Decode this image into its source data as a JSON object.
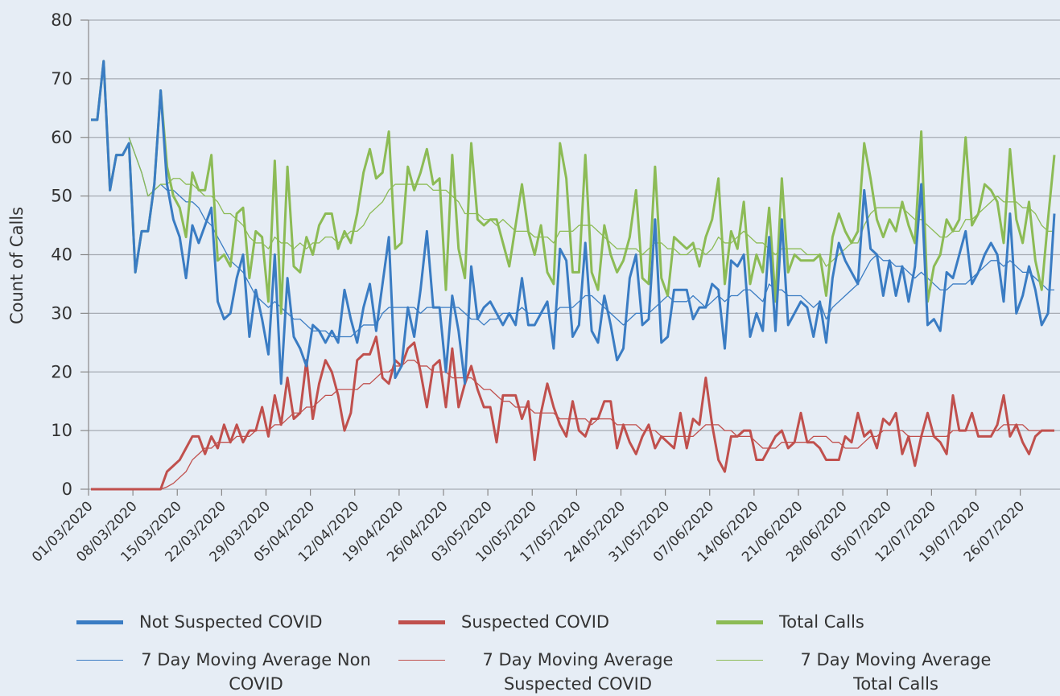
{
  "chart_data": {
    "type": "line",
    "ylabel": "Count of Calls",
    "ylim": [
      0,
      80
    ],
    "yticks": [
      0,
      10,
      20,
      30,
      40,
      50,
      60,
      70,
      80
    ],
    "grid": true,
    "categories": [
      "01/03/2020",
      null,
      null,
      null,
      null,
      null,
      null,
      "08/03/2020",
      null,
      null,
      null,
      null,
      null,
      null,
      "15/03/2020",
      null,
      null,
      null,
      null,
      null,
      null,
      "22/03/2020",
      null,
      null,
      null,
      null,
      null,
      null,
      "29/03/2020",
      null,
      null,
      null,
      null,
      null,
      null,
      "05/04/2020",
      null,
      null,
      null,
      null,
      null,
      null,
      "12/04/2020",
      null,
      null,
      null,
      null,
      null,
      null,
      "19/04/2020",
      null,
      null,
      null,
      null,
      null,
      null,
      "26/04/2020",
      null,
      null,
      null,
      null,
      null,
      null,
      "03/05/2020",
      null,
      null,
      null,
      null,
      null,
      null,
      "10/05/2020",
      null,
      null,
      null,
      null,
      null,
      null,
      "17/05/2020",
      null,
      null,
      null,
      null,
      null,
      null,
      "24/05/2020",
      null,
      null,
      null,
      null,
      null,
      null,
      "31/05/2020",
      null,
      null,
      null,
      null,
      null,
      null,
      "07/06/2020",
      null,
      null,
      null,
      null,
      null,
      null,
      "14/06/2020",
      null,
      null,
      null,
      null,
      null,
      null,
      "21/06/2020",
      null,
      null,
      null,
      null,
      null,
      null,
      "28/06/2020",
      null,
      null,
      null,
      null,
      null,
      null,
      "05/07/2020",
      null,
      null,
      null,
      null,
      null,
      null,
      "12/07/2020",
      null,
      null,
      null,
      null,
      null,
      null,
      "19/07/2020",
      null,
      null,
      null,
      null,
      null,
      null,
      "26/07/2020",
      null,
      null,
      null,
      null,
      null
    ],
    "series": [
      {
        "name": "Not Suspected COVID",
        "color": "#3a7cc3",
        "values": [
          63,
          63,
          73,
          51,
          57,
          57,
          59,
          37,
          44,
          44,
          52,
          68,
          52,
          46,
          43,
          36,
          45,
          42,
          45,
          48,
          32,
          29,
          30,
          36,
          40,
          26,
          34,
          29,
          23,
          40,
          18,
          36,
          26,
          24,
          21,
          28,
          27,
          25,
          27,
          25,
          34,
          29,
          25,
          31,
          35,
          27,
          35,
          43,
          19,
          21,
          31,
          26,
          34,
          44,
          31,
          31,
          20,
          33,
          27,
          18,
          38,
          29,
          31,
          32,
          30,
          28,
          30,
          28,
          36,
          28,
          28,
          30,
          32,
          24,
          41,
          39,
          26,
          28,
          42,
          27,
          25,
          33,
          28,
          22,
          24,
          36,
          40,
          28,
          29,
          46,
          25,
          26,
          34,
          34,
          34,
          29,
          31,
          31,
          35,
          34,
          24,
          39,
          38,
          40,
          26,
          30,
          27,
          43,
          27,
          46,
          28,
          30,
          32,
          31,
          26,
          32,
          25,
          36,
          42,
          39,
          37,
          35,
          51,
          41,
          40,
          33,
          39,
          33,
          38,
          32,
          38,
          52,
          28,
          29,
          27,
          37,
          36,
          40,
          44,
          35,
          37,
          40,
          42,
          40,
          32,
          47,
          30,
          33,
          38,
          34,
          28,
          30,
          47
        ]
      },
      {
        "name": "Suspected COVID",
        "color": "#c0504d",
        "values": [
          0,
          0,
          0,
          0,
          0,
          0,
          0,
          0,
          0,
          0,
          0,
          0,
          3,
          4,
          5,
          7,
          9,
          9,
          6,
          9,
          7,
          11,
          8,
          11,
          8,
          10,
          10,
          14,
          9,
          16,
          11,
          19,
          12,
          13,
          22,
          12,
          18,
          22,
          20,
          16,
          10,
          13,
          22,
          23,
          23,
          26,
          19,
          18,
          22,
          21,
          24,
          25,
          20,
          14,
          21,
          22,
          14,
          24,
          14,
          18,
          21,
          17,
          14,
          14,
          8,
          16,
          16,
          16,
          12,
          15,
          5,
          13,
          18,
          14,
          11,
          9,
          15,
          10,
          9,
          12,
          12,
          15,
          15,
          7,
          11,
          8,
          6,
          9,
          11,
          7,
          9,
          8,
          7,
          13,
          7,
          12,
          11,
          19,
          11,
          5,
          3,
          9,
          9,
          10,
          10,
          5,
          5,
          7,
          9,
          10,
          7,
          8,
          13,
          8,
          8,
          7,
          5,
          5,
          5,
          9,
          8,
          13,
          9,
          10,
          7,
          12,
          11,
          13,
          6,
          9,
          4,
          9,
          13,
          9,
          8,
          6,
          16,
          10,
          10,
          13,
          9,
          9,
          9,
          11,
          16,
          9,
          11,
          8,
          6,
          9,
          10,
          10,
          10
        ]
      },
      {
        "name": "Total Calls",
        "color": "#8cbb55",
        "values": [
          63,
          63,
          73,
          51,
          57,
          57,
          59,
          37,
          44,
          44,
          52,
          68,
          55,
          50,
          48,
          43,
          54,
          51,
          51,
          57,
          39,
          40,
          38,
          47,
          48,
          36,
          44,
          43,
          32,
          56,
          30,
          55,
          38,
          37,
          43,
          40,
          45,
          47,
          47,
          41,
          44,
          42,
          47,
          54,
          58,
          53,
          54,
          61,
          41,
          42,
          55,
          51,
          54,
          58,
          52,
          53,
          34,
          57,
          41,
          36,
          59,
          46,
          45,
          46,
          46,
          42,
          38,
          45,
          52,
          44,
          40,
          45,
          37,
          35,
          59,
          53,
          37,
          37,
          57,
          37,
          34,
          45,
          40,
          37,
          39,
          43,
          51,
          36,
          35,
          55,
          36,
          33,
          43,
          42,
          41,
          42,
          38,
          43,
          46,
          53,
          35,
          44,
          41,
          49,
          35,
          40,
          37,
          48,
          32,
          53,
          37,
          40,
          39,
          39,
          39,
          40,
          33,
          43,
          47,
          44,
          42,
          44,
          59,
          53,
          46,
          43,
          46,
          44,
          49,
          45,
          42,
          61,
          32,
          38,
          40,
          46,
          44,
          46,
          60,
          45,
          47,
          52,
          51,
          49,
          42,
          58,
          46,
          42,
          49,
          39,
          34,
          46,
          57
        ]
      },
      {
        "name": "7 Day Moving Average Non COVID",
        "color": "#3a7cc3",
        "values": [
          null,
          null,
          null,
          null,
          null,
          null,
          60,
          57,
          54,
          50,
          51,
          52,
          51,
          51,
          50,
          49,
          49,
          48,
          46,
          45,
          43,
          41,
          39,
          38,
          37,
          35,
          33,
          32,
          31,
          32,
          31,
          30,
          29,
          29,
          28,
          27,
          27,
          27,
          26,
          26,
          26,
          26,
          27,
          28,
          28,
          28,
          30,
          31,
          31,
          31,
          31,
          31,
          30,
          31,
          31,
          31,
          31,
          31,
          31,
          30,
          29,
          29,
          28,
          29,
          29,
          30,
          30,
          30,
          31,
          30,
          30,
          30,
          30,
          30,
          31,
          31,
          31,
          32,
          33,
          33,
          32,
          31,
          30,
          29,
          28,
          29,
          30,
          30,
          30,
          31,
          32,
          33,
          32,
          32,
          32,
          33,
          32,
          31,
          32,
          33,
          32,
          33,
          33,
          34,
          34,
          33,
          32,
          35,
          34,
          34,
          33,
          33,
          33,
          32,
          31,
          32,
          29,
          31,
          32,
          33,
          34,
          35,
          37,
          39,
          40,
          39,
          39,
          38,
          38,
          37,
          36,
          37,
          36,
          35,
          34,
          34,
          35,
          35,
          35,
          36,
          37,
          38,
          39,
          39,
          38,
          39,
          38,
          37,
          37,
          36,
          35,
          34,
          34
        ]
      },
      {
        "name": "7 Day Moving Average Suspected COVID",
        "color": "#c0504d",
        "values": [
          null,
          null,
          null,
          null,
          null,
          null,
          0,
          0,
          0,
          0,
          0,
          0,
          0.4,
          1,
          2,
          3,
          5,
          6,
          7,
          7,
          8,
          8,
          8,
          9,
          9,
          9,
          10,
          10,
          10,
          11,
          11,
          12,
          13,
          13,
          14,
          14,
          15,
          16,
          16,
          17,
          17,
          17,
          17,
          18,
          18,
          19,
          20,
          20,
          21,
          21,
          22,
          22,
          21,
          21,
          20,
          20,
          20,
          19,
          19,
          19,
          19,
          18,
          17,
          17,
          16,
          15,
          15,
          14,
          14,
          14,
          13,
          13,
          13,
          13,
          12,
          12,
          12,
          12,
          12,
          11,
          12,
          12,
          12,
          11,
          11,
          11,
          11,
          10,
          10,
          10,
          9,
          9,
          9,
          9,
          9,
          9,
          10,
          11,
          11,
          11,
          10,
          10,
          9,
          9,
          9,
          8,
          7,
          7,
          7,
          8,
          8,
          8,
          8,
          8,
          9,
          9,
          9,
          8,
          8,
          7,
          7,
          7,
          8,
          9,
          9,
          10,
          10,
          10,
          10,
          9,
          9,
          9,
          9,
          9,
          9,
          9,
          10,
          10,
          10,
          10,
          10,
          10,
          10,
          10,
          11,
          11,
          11,
          11,
          10,
          10,
          10,
          10,
          10
        ]
      },
      {
        "name": "7 Day Moving Average Total Calls",
        "color": "#8cbb55",
        "values": [
          null,
          null,
          null,
          null,
          null,
          null,
          60,
          57,
          54,
          50,
          51,
          52,
          52,
          53,
          53,
          52,
          52,
          51,
          50,
          50,
          49,
          47,
          47,
          46,
          45,
          43,
          42,
          42,
          41,
          43,
          42,
          42,
          41,
          42,
          41,
          42,
          42,
          43,
          43,
          42,
          43,
          44,
          44,
          45,
          47,
          48,
          49,
          51,
          52,
          52,
          52,
          52,
          52,
          52,
          51,
          51,
          51,
          50,
          49,
          47,
          47,
          47,
          46,
          46,
          45,
          46,
          45,
          44,
          44,
          44,
          43,
          43,
          43,
          42,
          44,
          44,
          44,
          45,
          45,
          45,
          44,
          43,
          42,
          41,
          41,
          41,
          41,
          40,
          41,
          42,
          42,
          41,
          41,
          40,
          40,
          41,
          41,
          40,
          41,
          43,
          42,
          42,
          43,
          44,
          43,
          42,
          42,
          41,
          40,
          41,
          41,
          41,
          41,
          40,
          40,
          40,
          38,
          39,
          40,
          41,
          42,
          42,
          45,
          47,
          48,
          48,
          48,
          48,
          48,
          47,
          46,
          46,
          45,
          44,
          43,
          43,
          44,
          44,
          46,
          46,
          47,
          48,
          49,
          50,
          49,
          49,
          49,
          48,
          48,
          47,
          45,
          44,
          44
        ]
      }
    ]
  }
}
